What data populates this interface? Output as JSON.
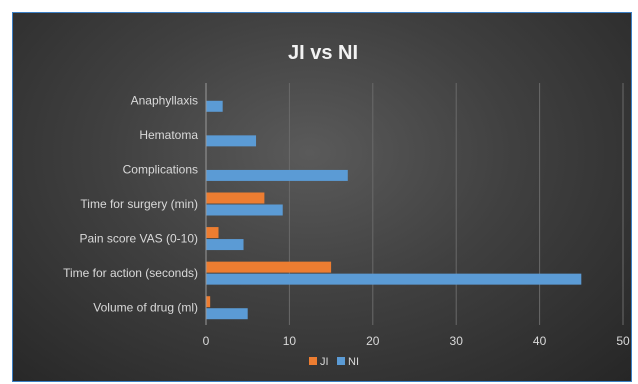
{
  "colors": {
    "ji": "#ed7d31",
    "ni": "#5b9bd5",
    "gridline": "#6a6a6a",
    "axis": "#9a9a9a",
    "frame_border": "#3c7fc4"
  },
  "chart_data": {
    "type": "bar",
    "orientation": "horizontal",
    "title": "JI vs NI",
    "categories": [
      "Volume of drug (ml)",
      "Time for action (seconds)",
      "Pain score VAS (0-10)",
      "Time for surgery (min)",
      "Complications",
      "Hematoma",
      "Anaphyllaxis"
    ],
    "series": [
      {
        "name": "JI",
        "color": "#ed7d31",
        "values": [
          0.5,
          15,
          1.5,
          7,
          0,
          0,
          0
        ]
      },
      {
        "name": "NI",
        "color": "#5b9bd5",
        "values": [
          5,
          45,
          4.5,
          9.2,
          17,
          6,
          2
        ]
      }
    ],
    "x_ticks": [
      "0",
      "10",
      "20",
      "30",
      "40",
      "50"
    ],
    "xlim": [
      0,
      50
    ],
    "grid": true,
    "legend_position": "bottom"
  }
}
